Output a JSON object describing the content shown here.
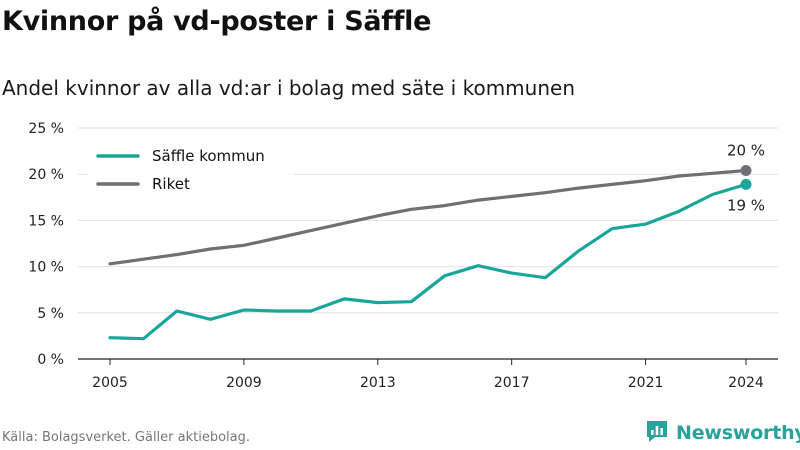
{
  "title": "Kvinnor på vd-poster i Säffle",
  "subtitle": "Andel kvinnor av alla vd:ar i bolag med säte i kommunen",
  "source": "Källa: Bolagsverket. Gäller aktiebolag.",
  "brand": {
    "name": "Newsworthy",
    "icon": "newsworthy-logo-icon",
    "color": "#27a39b"
  },
  "chart_data": {
    "type": "line",
    "x": [
      2005,
      2006,
      2007,
      2008,
      2009,
      2010,
      2011,
      2012,
      2013,
      2014,
      2015,
      2016,
      2017,
      2018,
      2019,
      2020,
      2021,
      2022,
      2023,
      2024
    ],
    "x_ticks": [
      2005,
      2009,
      2013,
      2017,
      2021,
      2024
    ],
    "x_tick_labels": [
      "2005",
      "2009",
      "2013",
      "2017",
      "2021",
      "2024"
    ],
    "ylim": [
      0,
      25
    ],
    "y_ticks": [
      0,
      5,
      10,
      15,
      20,
      25
    ],
    "y_tick_labels": [
      "0 %",
      "5 %",
      "10 %",
      "15 %",
      "20 %",
      "25 %"
    ],
    "grid": "horizontal",
    "legend_position": "top-left",
    "series": [
      {
        "name": "Säffle kommun",
        "color": "#1aa59b",
        "values": [
          2.3,
          2.2,
          5.2,
          4.3,
          5.3,
          5.2,
          5.2,
          6.5,
          6.1,
          6.2,
          9.0,
          10.1,
          9.3,
          8.8,
          11.7,
          14.1,
          14.6,
          16.0,
          17.8,
          18.9
        ],
        "end_label": "19 %",
        "end_label_position": "below"
      },
      {
        "name": "Riket",
        "color": "#6f6f74",
        "values": [
          10.3,
          10.8,
          11.3,
          11.9,
          12.3,
          13.1,
          13.9,
          14.7,
          15.5,
          16.2,
          16.6,
          17.2,
          17.6,
          18.0,
          18.5,
          18.9,
          19.3,
          19.8,
          20.1,
          20.4
        ],
        "end_label": "20 %",
        "end_label_position": "above"
      }
    ]
  }
}
